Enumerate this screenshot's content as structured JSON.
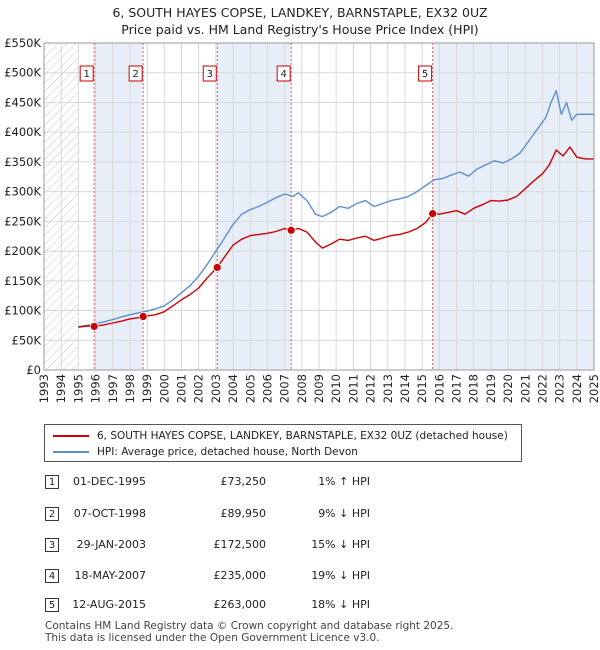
{
  "title": "6, SOUTH HAYES COPSE, LANDKEY, BARNSTAPLE, EX32 0UZ",
  "subtitle": "Price paid vs. HM Land Registry's House Price Index (HPI)",
  "colors": {
    "property": "#cc0000",
    "hpi": "#5b8fd0",
    "band": "#e8eef8",
    "marker_line": "#e06060"
  },
  "chart_data": {
    "type": "line",
    "title": "6, SOUTH HAYES COPSE, LANDKEY, BARNSTAPLE, EX32 0UZ",
    "subtitle": "Price paid vs. HM Land Registry's House Price Index (HPI)",
    "xlim": [
      1993,
      2025
    ],
    "ylim": [
      0,
      550000
    ],
    "x_ticks": [
      "1993",
      "1994",
      "1995",
      "1996",
      "1997",
      "1998",
      "1999",
      "2000",
      "2001",
      "2002",
      "2003",
      "2004",
      "2005",
      "2006",
      "2007",
      "2008",
      "2009",
      "2010",
      "2011",
      "2012",
      "2013",
      "2014",
      "2015",
      "2016",
      "2017",
      "2018",
      "2019",
      "2020",
      "2021",
      "2022",
      "2023",
      "2024",
      "2025"
    ],
    "y_ticks": [
      0,
      50000,
      100000,
      150000,
      200000,
      250000,
      300000,
      350000,
      400000,
      450000,
      500000,
      550000
    ],
    "y_tick_labels": [
      "£0",
      "£50K",
      "£100K",
      "£150K",
      "£200K",
      "£250K",
      "£300K",
      "£350K",
      "£400K",
      "£450K",
      "£500K",
      "£550K"
    ],
    "grid": true,
    "legend_position": "bottom",
    "series": [
      {
        "name": "6, SOUTH HAYES COPSE, LANDKEY, BARNSTAPLE, EX32 0UZ (detached house)",
        "color": "#cc0000",
        "x": [
          1995.0,
          1995.5,
          1995.92,
          1996.5,
          1997.0,
          1997.5,
          1998.0,
          1998.5,
          1998.77,
          1999.5,
          2000.0,
          2000.5,
          2001.0,
          2001.5,
          2002.0,
          2002.5,
          2003.08,
          2003.5,
          2004.0,
          2004.5,
          2005.0,
          2005.5,
          2006.0,
          2006.5,
          2007.0,
          2007.38,
          2007.8,
          2008.3,
          2008.8,
          2009.2,
          2009.7,
          2010.2,
          2010.7,
          2011.2,
          2011.7,
          2012.2,
          2012.7,
          2013.2,
          2013.7,
          2014.2,
          2014.7,
          2015.2,
          2015.61,
          2016.0,
          2016.5,
          2017.0,
          2017.5,
          2018.0,
          2018.5,
          2019.0,
          2019.5,
          2020.0,
          2020.5,
          2021.0,
          2021.5,
          2022.0,
          2022.4,
          2022.8,
          2023.2,
          2023.6,
          2024.0,
          2024.5,
          2025.0
        ],
        "y": [
          72000,
          74000,
          73250,
          76000,
          79000,
          82000,
          86000,
          88000,
          89950,
          93000,
          98000,
          108000,
          118000,
          127000,
          138000,
          155000,
          172500,
          190000,
          210000,
          220000,
          226000,
          228000,
          230000,
          233000,
          238000,
          235000,
          238000,
          232000,
          215000,
          205000,
          212000,
          220000,
          218000,
          222000,
          225000,
          218000,
          222000,
          226000,
          228000,
          232000,
          238000,
          248000,
          263000,
          262000,
          265000,
          268000,
          262000,
          272000,
          278000,
          285000,
          284000,
          286000,
          292000,
          305000,
          318000,
          330000,
          345000,
          370000,
          360000,
          375000,
          358000,
          355000,
          355000
        ]
      },
      {
        "name": "HPI: Average price, detached house, North Devon",
        "color": "#5b8fd0",
        "x": [
          1995.0,
          1995.5,
          1996.0,
          1996.5,
          1997.0,
          1997.5,
          1998.0,
          1998.5,
          1999.0,
          1999.5,
          2000.0,
          2000.5,
          2001.0,
          2001.5,
          2002.0,
          2002.5,
          2003.0,
          2003.5,
          2004.0,
          2004.5,
          2005.0,
          2005.5,
          2006.0,
          2006.5,
          2007.0,
          2007.5,
          2007.8,
          2008.3,
          2008.8,
          2009.2,
          2009.7,
          2010.2,
          2010.7,
          2011.2,
          2011.7,
          2012.2,
          2012.7,
          2013.2,
          2013.7,
          2014.2,
          2014.7,
          2015.2,
          2015.7,
          2016.2,
          2016.7,
          2017.2,
          2017.7,
          2018.2,
          2018.7,
          2019.2,
          2019.7,
          2020.2,
          2020.7,
          2021.2,
          2021.7,
          2022.2,
          2022.5,
          2022.8,
          2023.1,
          2023.4,
          2023.7,
          2024.0,
          2024.5,
          2025.0
        ],
        "y": [
          73000,
          75000,
          78000,
          81000,
          85000,
          89000,
          93000,
          96000,
          99000,
          103000,
          108000,
          118000,
          130000,
          142000,
          158000,
          178000,
          200000,
          222000,
          245000,
          262000,
          270000,
          275000,
          282000,
          290000,
          296000,
          292000,
          298000,
          285000,
          262000,
          258000,
          265000,
          275000,
          272000,
          280000,
          285000,
          275000,
          280000,
          285000,
          288000,
          292000,
          300000,
          310000,
          320000,
          322000,
          328000,
          333000,
          326000,
          338000,
          345000,
          352000,
          348000,
          355000,
          365000,
          385000,
          405000,
          425000,
          450000,
          470000,
          430000,
          450000,
          420000,
          430000,
          430000,
          430000
        ]
      }
    ],
    "sales": [
      {
        "n": "1",
        "x": 1995.92,
        "y": 73250
      },
      {
        "n": "2",
        "x": 1998.77,
        "y": 89950
      },
      {
        "n": "3",
        "x": 2003.08,
        "y": 172500
      },
      {
        "n": "4",
        "x": 2007.38,
        "y": 235000
      },
      {
        "n": "5",
        "x": 2015.61,
        "y": 263000
      }
    ]
  },
  "transactions": [
    {
      "n": "1",
      "date": "01-DEC-1995",
      "price": "£73,250",
      "hpi": "1% ↑ HPI"
    },
    {
      "n": "2",
      "date": "07-OCT-1998",
      "price": "£89,950",
      "hpi": "9% ↓ HPI"
    },
    {
      "n": "3",
      "date": "29-JAN-2003",
      "price": "£172,500",
      "hpi": "15% ↓ HPI"
    },
    {
      "n": "4",
      "date": "18-MAY-2007",
      "price": "£235,000",
      "hpi": "19% ↓ HPI"
    },
    {
      "n": "5",
      "date": "12-AUG-2015",
      "price": "£263,000",
      "hpi": "18% ↓ HPI"
    }
  ],
  "footer": {
    "line1": "Contains HM Land Registry data © Crown copyright and database right 2025.",
    "line2": "This data is licensed under the Open Government Licence v3.0."
  }
}
